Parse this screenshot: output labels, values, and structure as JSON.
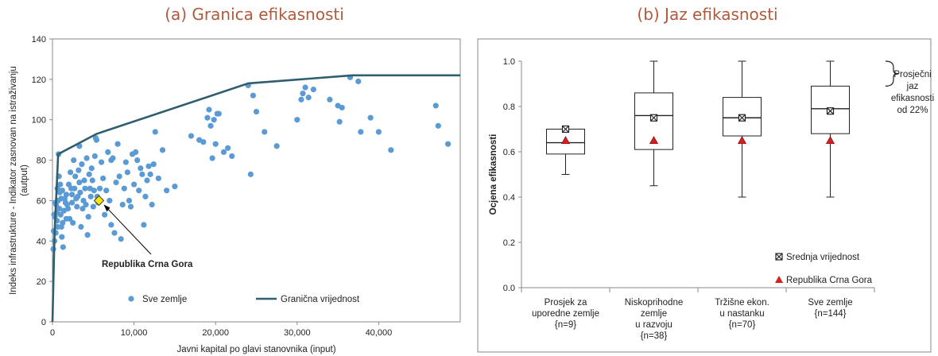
{
  "panel_a_title": "(a) Granica efikasnosti",
  "panel_b_title": "(b) Jaz efikasnosti",
  "chart_data": [
    {
      "type": "scatter",
      "title": "(a) Granica efikasnosti",
      "xlabel": "Javni kapital po glavi stanovnika (input)",
      "ylabel_line1": "Indeks infrastrukture - Indikator zasnovan na istraživanju",
      "ylabel_line2": "(autput)",
      "xlim": [
        0,
        50000
      ],
      "ylim": [
        0,
        140
      ],
      "x_ticks": [
        0,
        10000,
        20000,
        30000,
        40000
      ],
      "x_tick_labels": [
        "0",
        "10,000",
        "20,000",
        "30,000",
        "40,000"
      ],
      "y_ticks": [
        0,
        20,
        40,
        60,
        80,
        100,
        120,
        140
      ],
      "grid": "none",
      "legend_placement": "bottom",
      "colors": {
        "points": "#5b9bd5",
        "frontier": "#2f5e6e",
        "highlight": "#ffe600"
      },
      "annotation": "Republika Crna Gora",
      "highlight_point": {
        "x": 5700,
        "y": 60
      },
      "series": [
        {
          "name": "Sve zemlje",
          "points": [
            [
              100,
              36
            ],
            [
              150,
              45
            ],
            [
              200,
              53
            ],
            [
              250,
              40
            ],
            [
              300,
              52
            ],
            [
              350,
              59
            ],
            [
              400,
              44
            ],
            [
              450,
              58
            ],
            [
              500,
              54
            ],
            [
              550,
              50
            ],
            [
              600,
              66
            ],
            [
              650,
              47
            ],
            [
              700,
              60
            ],
            [
              750,
              83
            ],
            [
              800,
              72
            ],
            [
              850,
              56
            ],
            [
              900,
              64
            ],
            [
              950,
              68
            ],
            [
              1000,
              53
            ],
            [
              1050,
              61
            ],
            [
              1100,
              47
            ],
            [
              1150,
              42
            ],
            [
              1200,
              65
            ],
            [
              1250,
              49
            ],
            [
              1300,
              37
            ],
            [
              1400,
              55
            ],
            [
              1500,
              61
            ],
            [
              1600,
              59
            ],
            [
              1700,
              63
            ],
            [
              1800,
              58
            ],
            [
              1900,
              56
            ],
            [
              2000,
              68
            ],
            [
              2100,
              51
            ],
            [
              2200,
              74
            ],
            [
              2300,
              66
            ],
            [
              2400,
              59
            ],
            [
              2500,
              49
            ],
            [
              2600,
              80
            ],
            [
              2700,
              66
            ],
            [
              2800,
              72
            ],
            [
              2900,
              61
            ],
            [
              3000,
              57
            ],
            [
              3100,
              62
            ],
            [
              3200,
              75
            ],
            [
              3300,
              69
            ],
            [
              3400,
              64
            ],
            [
              3500,
              47
            ],
            [
              3600,
              78
            ],
            [
              3700,
              56
            ],
            [
              3800,
              60
            ],
            [
              3900,
              70
            ],
            [
              4000,
              66
            ],
            [
              4100,
              58
            ],
            [
              4200,
              81
            ],
            [
              4300,
              43
            ],
            [
              4400,
              52
            ],
            [
              4500,
              73
            ],
            [
              4600,
              66
            ],
            [
              4700,
              62
            ],
            [
              4800,
              76
            ],
            [
              4900,
              70
            ],
            [
              5000,
              57
            ],
            [
              5100,
              65
            ],
            [
              5200,
              82
            ],
            [
              5300,
              91
            ],
            [
              5400,
              90
            ],
            [
              5500,
              62
            ],
            [
              5600,
              59
            ],
            [
              5800,
              66
            ],
            [
              6000,
              79
            ],
            [
              6200,
              71
            ],
            [
              6400,
              53
            ],
            [
              6600,
              65
            ],
            [
              6800,
              84
            ],
            [
              7000,
              60
            ],
            [
              7200,
              48
            ],
            [
              7400,
              81
            ],
            [
              7600,
              44
            ],
            [
              7800,
              69
            ],
            [
              8000,
              88
            ],
            [
              8200,
              72
            ],
            [
              8400,
              41
            ],
            [
              8600,
              58
            ],
            [
              8800,
              66
            ],
            [
              9000,
              79
            ],
            [
              9200,
              74
            ],
            [
              9400,
              60
            ],
            [
              9600,
              57
            ],
            [
              9800,
              83
            ],
            [
              10000,
              68
            ],
            [
              10200,
              84
            ],
            [
              10400,
              80
            ],
            [
              10600,
              65
            ],
            [
              10800,
              76
            ],
            [
              11000,
              73
            ],
            [
              11200,
              48
            ],
            [
              11400,
              62
            ],
            [
              11600,
              70
            ],
            [
              11800,
              77
            ],
            [
              12000,
              73
            ],
            [
              12200,
              58
            ],
            [
              12400,
              78
            ],
            [
              12600,
              94
            ],
            [
              13000,
              71
            ],
            [
              13500,
              85
            ],
            [
              14000,
              65
            ],
            [
              15000,
              67
            ],
            [
              17000,
              92
            ],
            [
              18000,
              90
            ],
            [
              18500,
              89
            ],
            [
              19000,
              101
            ],
            [
              19200,
              105
            ],
            [
              19400,
              97
            ],
            [
              19600,
              81
            ],
            [
              19800,
              100
            ],
            [
              20000,
              88
            ],
            [
              20200,
              103
            ],
            [
              20400,
              103
            ],
            [
              21000,
              84
            ],
            [
              21500,
              86
            ],
            [
              22000,
              82
            ],
            [
              24000,
              117
            ],
            [
              24300,
              73
            ],
            [
              24600,
              112
            ],
            [
              25000,
              104
            ],
            [
              26000,
              94
            ],
            [
              27500,
              87
            ],
            [
              30000,
              100
            ],
            [
              30500,
              110
            ],
            [
              30700,
              113
            ],
            [
              31000,
              116
            ],
            [
              31400,
              111
            ],
            [
              32000,
              115
            ],
            [
              34000,
              110
            ],
            [
              35000,
              107
            ],
            [
              35200,
              99
            ],
            [
              35500,
              106
            ],
            [
              36500,
              121
            ],
            [
              37500,
              119
            ],
            [
              37800,
              94
            ],
            [
              39000,
              101
            ],
            [
              40000,
              94
            ],
            [
              41500,
              85
            ],
            [
              47000,
              107
            ],
            [
              47300,
              97
            ],
            [
              48500,
              88
            ],
            [
              7200,
              80
            ],
            [
              3300,
              87
            ],
            [
              2400,
              63
            ],
            [
              1700,
              51
            ]
          ]
        },
        {
          "name": "Granična vrijednost",
          "points": [
            [
              0,
              0
            ],
            [
              250,
              43
            ],
            [
              700,
              83
            ],
            [
              5400,
              93
            ],
            [
              24000,
              118
            ],
            [
              36800,
              122
            ],
            [
              50000,
              122
            ]
          ]
        }
      ]
    },
    {
      "type": "box",
      "title": "(b) Jaz efikasnosti",
      "ylabel": "Ocjena efikasnosti",
      "ylim": [
        0,
        1
      ],
      "y_ticks": [
        0.0,
        0.2,
        0.4,
        0.6,
        0.8,
        1.0
      ],
      "y_tick_labels": [
        "0.0",
        "0.2",
        "0.4",
        "0.6",
        "0.8",
        "1.0"
      ],
      "grid": "none",
      "legend_placement": "bottom-right",
      "colors": {
        "mean_marker": "#222222",
        "country_marker": "#d42020"
      },
      "categories": [
        [
          "Prosjek za",
          "uporedne zemlje",
          "{n=9}"
        ],
        [
          "Niskoprihodne",
          "zemlje",
          "u razvoju",
          "{n=38}"
        ],
        [
          "Tržišne ekon.",
          "u nastanku",
          "{n=70}"
        ],
        [
          "Sve zemlje",
          "{n=144}"
        ]
      ],
      "boxes": [
        {
          "min": 0.5,
          "q1": 0.59,
          "median": 0.64,
          "q3": 0.7,
          "max": 0.7,
          "mean": 0.7,
          "country": 0.65
        },
        {
          "min": 0.45,
          "q1": 0.61,
          "median": 0.76,
          "q3": 0.86,
          "max": 1.0,
          "mean": 0.75,
          "country": 0.65
        },
        {
          "min": 0.4,
          "q1": 0.67,
          "median": 0.75,
          "q3": 0.84,
          "max": 1.0,
          "mean": 0.75,
          "country": 0.65
        },
        {
          "min": 0.4,
          "q1": 0.68,
          "median": 0.79,
          "q3": 0.89,
          "max": 1.0,
          "mean": 0.78,
          "country": 0.65
        }
      ],
      "legend": [
        "Srednja vrijednost",
        "Republika Crna Gora"
      ],
      "annotation": [
        "Prosječni",
        "jaz",
        "efikasnosti",
        "od 22%"
      ]
    }
  ]
}
